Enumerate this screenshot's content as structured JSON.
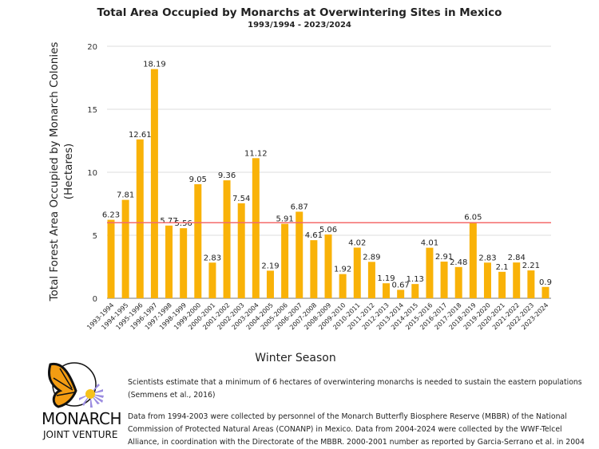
{
  "chart_data": {
    "type": "bar",
    "title": "Total Area Occupied by Monarchs at Overwintering Sites in Mexico",
    "subtitle": "1993/1994 - 2023/2024",
    "xlabel": "Winter Season",
    "ylabel": [
      "Total Forest Area Occupied by Monarch Colonies",
      "(Hectares)"
    ],
    "ylim": [
      0,
      20
    ],
    "yticks": [
      0,
      5,
      10,
      15,
      20
    ],
    "grid": true,
    "bar_color": "#F9B208",
    "threshold": {
      "value": 6,
      "color": "#F46B6B"
    },
    "categories": [
      "1993-1994",
      "1994-1995",
      "1995-1996",
      "1996-1997",
      "1997-1998",
      "1998-1999",
      "1999-2000",
      "2000-2001",
      "2001-2002",
      "2002-2003",
      "2003-2004",
      "2004-2005",
      "2005-2006",
      "2006-2007",
      "2007-2008",
      "2008-2009",
      "2009-2010",
      "2010-2011",
      "2011-2012",
      "2012-2013",
      "2013-2014",
      "2014-2015",
      "2015-2016",
      "2016-2017",
      "2017-2018",
      "2018-2019",
      "2019-2020",
      "2020-2021",
      "2021-2022",
      "2022-2023",
      "2023-2024"
    ],
    "values": [
      6.23,
      7.81,
      12.61,
      18.19,
      5.77,
      5.56,
      9.05,
      2.83,
      9.36,
      7.54,
      11.12,
      2.19,
      5.91,
      6.87,
      4.61,
      5.06,
      1.92,
      4.02,
      2.89,
      1.19,
      0.67,
      1.13,
      4.01,
      2.91,
      2.48,
      6.05,
      2.83,
      2.1,
      2.84,
      2.21,
      0.9
    ]
  },
  "notes": {
    "line1": "Scientists estimate that a minimum of 6 hectares of overwintering monarchs is needed to sustain the eastern populations",
    "line2": "(Semmens et al., 2016)",
    "para2_1": "Data from  1994-2003 were collected by personnel of the Monarch Butterfly Biosphere Reserve (MBBR) of the National",
    "para2_2": "Commission of Protected Natural Areas (CONANP) in Mexico. Data from 2004-2024 were collected by the WWF-Telcel",
    "para2_3": "Alliance, in coordination with the Directorate of the MBBR. 2000-2001 number as reported by Garcia-Serrano et al. in 2004"
  },
  "logo": {
    "line1": "MONARCH",
    "line2": "JOINT VENTURE"
  }
}
